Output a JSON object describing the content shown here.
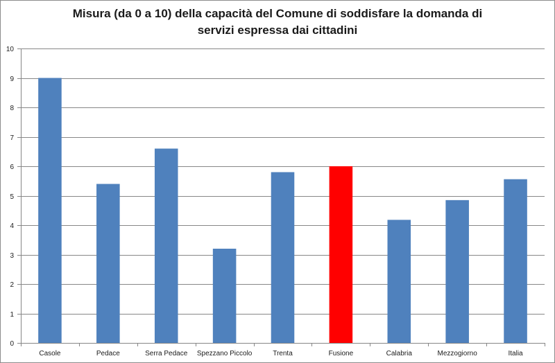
{
  "chart_data": {
    "type": "bar",
    "title_line1": "Misura (da 0 a 10) della capacità del Comune di soddisfare la domanda di",
    "title_line2": "servizi espressa dai cittadini",
    "xlabel": "",
    "ylabel": "",
    "categories": [
      "Casole",
      "Pedace",
      "Serra Pedace",
      "Spezzano Piccolo",
      "Trenta",
      "Fusione",
      "Calabria",
      "Mezzogiorno",
      "Italia"
    ],
    "values": [
      9.0,
      5.4,
      6.6,
      3.2,
      5.8,
      6.0,
      4.18,
      4.85,
      5.56
    ],
    "ylim": [
      0,
      10
    ],
    "yticks": [
      0,
      1,
      2,
      3,
      4,
      5,
      6,
      7,
      8,
      9,
      10
    ],
    "grid": true,
    "bar_color": "#4f81bd",
    "highlight_category": "Fusione",
    "highlight_color": "#ff0000"
  }
}
